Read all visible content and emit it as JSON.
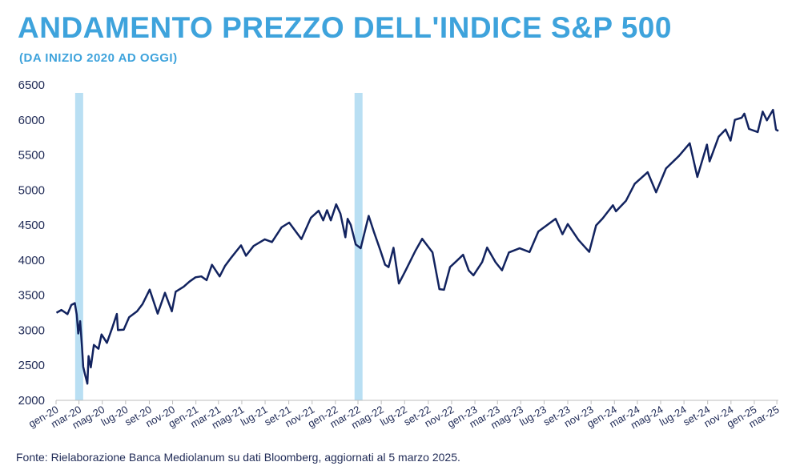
{
  "title": "ANDAMENTO PREZZO DELL'INDICE S&P 500",
  "subtitle": "(DA INIZIO 2020 AD OGGI)",
  "source": "Fonte: Rielaborazione Banca Mediolanum su dati Bloomberg, aggiornati al 5 marzo 2025.",
  "colors": {
    "title": "#3ea3dc",
    "line": "#12235f",
    "highlight": "#b9dff3",
    "axis": "#bcbcbc"
  },
  "chart_data": {
    "type": "line",
    "title": "ANDAMENTO PREZZO DELL'INDICE S&P 500",
    "ylim": [
      2000,
      6500
    ],
    "yticks": [
      2000,
      2500,
      3000,
      3500,
      4000,
      4500,
      5000,
      5500,
      6000,
      6500
    ],
    "xlim": [
      "2020-01-01",
      "2025-03-05"
    ],
    "xticks": [
      {
        "label": "gen-20",
        "date": "2020-01-01"
      },
      {
        "label": "mar-20",
        "date": "2020-03-01"
      },
      {
        "label": "mag-20",
        "date": "2020-05-01"
      },
      {
        "label": "lug-20",
        "date": "2020-07-01"
      },
      {
        "label": "set-20",
        "date": "2020-09-01"
      },
      {
        "label": "nov-20",
        "date": "2020-11-01"
      },
      {
        "label": "gen-21",
        "date": "2021-01-01"
      },
      {
        "label": "mar-21",
        "date": "2021-03-01"
      },
      {
        "label": "mag-21",
        "date": "2021-05-01"
      },
      {
        "label": "lug-21",
        "date": "2021-07-01"
      },
      {
        "label": "set-21",
        "date": "2021-09-01"
      },
      {
        "label": "nov-21",
        "date": "2021-11-01"
      },
      {
        "label": "gen-22",
        "date": "2022-01-01"
      },
      {
        "label": "mar-22",
        "date": "2022-03-01"
      },
      {
        "label": "mag-22",
        "date": "2022-05-01"
      },
      {
        "label": "lug-22",
        "date": "2022-07-01"
      },
      {
        "label": "set-22",
        "date": "2022-09-01"
      },
      {
        "label": "nov-22",
        "date": "2022-11-01"
      },
      {
        "label": "gen-23",
        "date": "2023-01-01"
      },
      {
        "label": "mar-23",
        "date": "2023-03-01"
      },
      {
        "label": "mag-23",
        "date": "2023-05-01"
      },
      {
        "label": "lug-23",
        "date": "2023-07-01"
      },
      {
        "label": "set-23",
        "date": "2023-09-01"
      },
      {
        "label": "nov-23",
        "date": "2023-11-01"
      },
      {
        "label": "gen-24",
        "date": "2024-01-01"
      },
      {
        "label": "mar-24",
        "date": "2024-03-01"
      },
      {
        "label": "mag-24",
        "date": "2024-05-01"
      },
      {
        "label": "lug-24",
        "date": "2024-07-01"
      },
      {
        "label": "set-24",
        "date": "2024-09-01"
      },
      {
        "label": "nov-24",
        "date": "2024-11-01"
      },
      {
        "label": "gen-25",
        "date": "2025-01-01"
      },
      {
        "label": "mar-25",
        "date": "2025-03-01"
      }
    ],
    "highlight_periods": [
      {
        "start": "2020-02-20",
        "end": "2020-03-05"
      },
      {
        "start": "2022-02-20",
        "end": "2022-03-10"
      }
    ],
    "series": [
      {
        "points": [
          [
            "2020-01-02",
            3250
          ],
          [
            "2020-01-15",
            3290
          ],
          [
            "2020-01-31",
            3230
          ],
          [
            "2020-02-10",
            3360
          ],
          [
            "2020-02-19",
            3386
          ],
          [
            "2020-02-24",
            3225
          ],
          [
            "2020-02-28",
            2954
          ],
          [
            "2020-03-04",
            3130
          ],
          [
            "2020-03-09",
            2746
          ],
          [
            "2020-03-12",
            2480
          ],
          [
            "2020-03-16",
            2386
          ],
          [
            "2020-03-23",
            2237
          ],
          [
            "2020-03-26",
            2630
          ],
          [
            "2020-04-01",
            2470
          ],
          [
            "2020-04-09",
            2790
          ],
          [
            "2020-04-21",
            2736
          ],
          [
            "2020-04-29",
            2940
          ],
          [
            "2020-05-13",
            2820
          ],
          [
            "2020-05-27",
            3036
          ],
          [
            "2020-06-08",
            3232
          ],
          [
            "2020-06-11",
            3002
          ],
          [
            "2020-06-26",
            3009
          ],
          [
            "2020-07-10",
            3185
          ],
          [
            "2020-07-31",
            3271
          ],
          [
            "2020-08-14",
            3372
          ],
          [
            "2020-09-02",
            3580
          ],
          [
            "2020-09-23",
            3237
          ],
          [
            "2020-10-12",
            3534
          ],
          [
            "2020-10-30",
            3270
          ],
          [
            "2020-11-09",
            3550
          ],
          [
            "2020-11-30",
            3621
          ],
          [
            "2020-12-15",
            3694
          ],
          [
            "2020-12-31",
            3756
          ],
          [
            "2021-01-15",
            3768
          ],
          [
            "2021-01-29",
            3714
          ],
          [
            "2021-02-12",
            3934
          ],
          [
            "2021-03-04",
            3768
          ],
          [
            "2021-03-18",
            3915
          ],
          [
            "2021-04-01",
            4019
          ],
          [
            "2021-04-29",
            4211
          ],
          [
            "2021-05-12",
            4063
          ],
          [
            "2021-06-01",
            4202
          ],
          [
            "2021-06-30",
            4297
          ],
          [
            "2021-07-19",
            4258
          ],
          [
            "2021-08-13",
            4468
          ],
          [
            "2021-09-02",
            4536
          ],
          [
            "2021-10-04",
            4300
          ],
          [
            "2021-10-29",
            4605
          ],
          [
            "2021-11-18",
            4704
          ],
          [
            "2021-11-30",
            4567
          ],
          [
            "2021-12-10",
            4712
          ],
          [
            "2021-12-20",
            4568
          ],
          [
            "2022-01-03",
            4796
          ],
          [
            "2022-01-14",
            4662
          ],
          [
            "2022-01-27",
            4326
          ],
          [
            "2022-02-02",
            4589
          ],
          [
            "2022-02-10",
            4504
          ],
          [
            "2022-02-23",
            4225
          ],
          [
            "2022-03-08",
            4170
          ],
          [
            "2022-03-29",
            4631
          ],
          [
            "2022-04-12",
            4397
          ],
          [
            "2022-04-29",
            4132
          ],
          [
            "2022-05-11",
            3935
          ],
          [
            "2022-05-20",
            3901
          ],
          [
            "2022-06-02",
            4177
          ],
          [
            "2022-06-16",
            3666
          ],
          [
            "2022-07-01",
            3825
          ],
          [
            "2022-07-29",
            4130
          ],
          [
            "2022-08-16",
            4305
          ],
          [
            "2022-09-12",
            4110
          ],
          [
            "2022-09-30",
            3586
          ],
          [
            "2022-10-12",
            3577
          ],
          [
            "2022-10-28",
            3901
          ],
          [
            "2022-11-15",
            3992
          ],
          [
            "2022-12-01",
            4076
          ],
          [
            "2022-12-16",
            3852
          ],
          [
            "2022-12-28",
            3783
          ],
          [
            "2023-01-20",
            3972
          ],
          [
            "2023-02-02",
            4179
          ],
          [
            "2023-02-24",
            3970
          ],
          [
            "2023-03-13",
            3855
          ],
          [
            "2023-03-31",
            4109
          ],
          [
            "2023-04-28",
            4169
          ],
          [
            "2023-05-24",
            4115
          ],
          [
            "2023-06-16",
            4409
          ],
          [
            "2023-07-31",
            4589
          ],
          [
            "2023-08-18",
            4370
          ],
          [
            "2023-09-01",
            4515
          ],
          [
            "2023-09-29",
            4288
          ],
          [
            "2023-10-27",
            4117
          ],
          [
            "2023-11-14",
            4495
          ],
          [
            "2023-12-01",
            4594
          ],
          [
            "2023-12-28",
            4783
          ],
          [
            "2024-01-05",
            4697
          ],
          [
            "2024-01-31",
            4845
          ],
          [
            "2024-02-23",
            5088
          ],
          [
            "2024-03-28",
            5254
          ],
          [
            "2024-04-19",
            4967
          ],
          [
            "2024-05-15",
            5308
          ],
          [
            "2024-06-18",
            5487
          ],
          [
            "2024-07-16",
            5667
          ],
          [
            "2024-08-05",
            5186
          ],
          [
            "2024-08-30",
            5648
          ],
          [
            "2024-09-06",
            5408
          ],
          [
            "2024-09-30",
            5762
          ],
          [
            "2024-10-18",
            5864
          ],
          [
            "2024-10-31",
            5705
          ],
          [
            "2024-11-11",
            6001
          ],
          [
            "2024-11-29",
            6032
          ],
          [
            "2024-12-06",
            6090
          ],
          [
            "2024-12-18",
            5872
          ],
          [
            "2025-01-10",
            5827
          ],
          [
            "2025-01-23",
            6118
          ],
          [
            "2025-02-03",
            5994
          ],
          [
            "2025-02-19",
            6144
          ],
          [
            "2025-02-27",
            5861
          ],
          [
            "2025-03-03",
            5849
          ],
          [
            "2025-03-05",
            5842
          ]
        ]
      }
    ]
  }
}
